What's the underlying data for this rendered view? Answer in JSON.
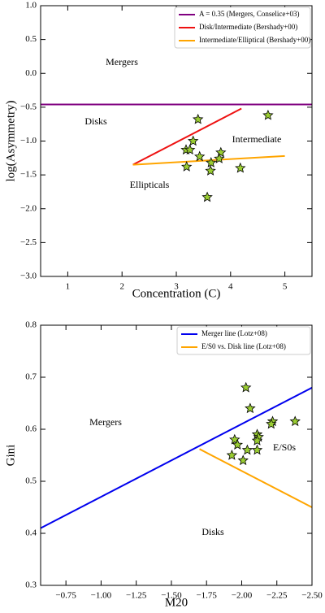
{
  "chart_data": [
    {
      "type": "scatter",
      "xlabel": "Concentration (C)",
      "ylabel": "log(Asymmetry)",
      "xlim": [
        0.5,
        5.5
      ],
      "ylim": [
        -3.0,
        1.0
      ],
      "xticks": [
        1,
        2,
        3,
        4,
        5
      ],
      "yticks": [
        {
          "value": -3.0,
          "label": "−3.0"
        },
        {
          "value": -2.5,
          "label": "−2.5"
        },
        {
          "value": -2.0,
          "label": "−2.0"
        },
        {
          "value": -1.5,
          "label": "−1.5"
        },
        {
          "value": -1.0,
          "label": "−1.0"
        },
        {
          "value": -0.5,
          "label": "−0.5"
        },
        {
          "value": 0.0,
          "label": "0.0"
        },
        {
          "value": 0.5,
          "label": "0.5"
        },
        {
          "value": 1.0,
          "label": "1.0"
        }
      ],
      "series": [
        {
          "type": "hline",
          "name": "A = 0.35 (Mergers, Conselice+03)",
          "color": "#800080",
          "y": -0.46
        },
        {
          "type": "line",
          "name": "Disk/Intermediate (Bershady+00)",
          "color": "#ee1111",
          "x": [
            2.2,
            4.2
          ],
          "y": [
            -1.35,
            -0.52
          ]
        },
        {
          "type": "line",
          "name": "Intermediate/Elliptical (Bershady+00)",
          "color": "#ffa500",
          "x": [
            2.2,
            5.0
          ],
          "y": [
            -1.35,
            -1.22
          ]
        },
        {
          "type": "stars",
          "color": "#9acd32",
          "x": [
            3.4,
            4.69,
            3.31,
            3.18,
            3.25,
            3.43,
            3.82,
            3.79,
            3.64,
            3.19,
            3.63,
            4.18,
            3.57
          ],
          "y": [
            -0.68,
            -0.62,
            -1.0,
            -1.13,
            -1.13,
            -1.23,
            -1.17,
            -1.26,
            -1.32,
            -1.38,
            -1.44,
            -1.4,
            -1.83
          ]
        }
      ],
      "annotations": [
        "Mergers",
        "Disks",
        "Intermediate",
        "Ellipticals"
      ]
    },
    {
      "type": "scatter",
      "xlabel": "M20",
      "ylabel": "Gini",
      "xlim": [
        -0.57,
        -2.5
      ],
      "ylim": [
        0.3,
        0.8
      ],
      "xticks": [
        {
          "value": -0.75,
          "label": "−0.75"
        },
        {
          "value": -1.0,
          "label": "−1.00"
        },
        {
          "value": -1.25,
          "label": "−1.25"
        },
        {
          "value": -1.5,
          "label": "−1.50"
        },
        {
          "value": -1.75,
          "label": "−1.75"
        },
        {
          "value": -2.0,
          "label": "−2.00"
        },
        {
          "value": -2.25,
          "label": "−2.25"
        },
        {
          "value": -2.5,
          "label": "−2.50"
        }
      ],
      "yticks": [
        0.3,
        0.4,
        0.5,
        0.6,
        0.7,
        0.8
      ],
      "series": [
        {
          "type": "line",
          "name": "Merger line (Lotz+08)",
          "color": "#0000ee",
          "x": [
            -0.57,
            -2.5
          ],
          "y": [
            0.41,
            0.68
          ]
        },
        {
          "type": "line",
          "name": "E/S0 vs. Disk line (Lotz+08)",
          "color": "#ffa500",
          "x": [
            -1.7,
            -2.5
          ],
          "y": [
            0.562,
            0.45
          ]
        },
        {
          "type": "stars",
          "color": "#9acd32",
          "x": [
            -2.03,
            -2.06,
            -2.11,
            -2.12,
            -2.11,
            -1.95,
            -1.97,
            -2.04,
            -2.11,
            -1.93,
            -2.01,
            -2.22,
            -2.21,
            -2.38
          ],
          "y": [
            0.68,
            0.64,
            0.59,
            0.585,
            0.578,
            0.58,
            0.57,
            0.56,
            0.56,
            0.55,
            0.54,
            0.615,
            0.61,
            0.615
          ]
        }
      ],
      "annotations": [
        "Mergers",
        "E/S0s",
        "Disks"
      ]
    }
  ]
}
